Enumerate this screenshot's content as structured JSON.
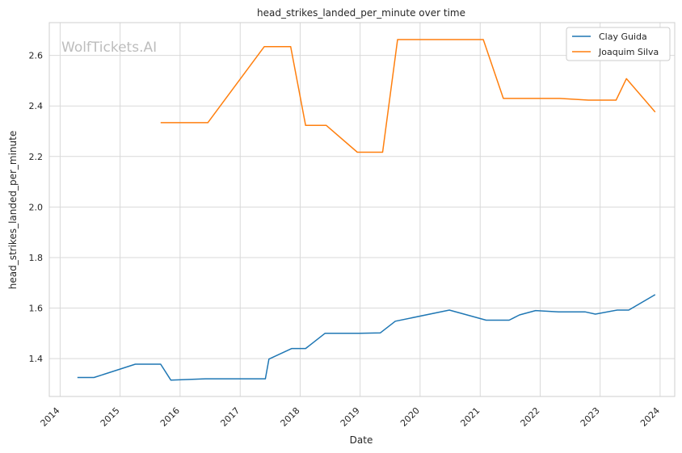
{
  "watermark": "WolfTickets.AI",
  "chart_data": {
    "type": "line",
    "title": "head_strikes_landed_per_minute over time",
    "xlabel": "Date",
    "ylabel": "head_strikes_landed_per_minute",
    "x_ticks": [
      "2014",
      "2015",
      "2016",
      "2017",
      "2018",
      "2019",
      "2020",
      "2021",
      "2022",
      "2023",
      "2024"
    ],
    "y_ticks": [
      "1.4",
      "1.6",
      "1.8",
      "2.0",
      "2.2",
      "2.4",
      "2.6"
    ],
    "xlim": [
      "2013-10-27",
      "2024-03-30"
    ],
    "ylim": [
      1.25,
      2.73
    ],
    "grid": true,
    "legend_position": "top-right",
    "series": [
      {
        "name": "Clay Guida",
        "color": "#1f77b4",
        "points": [
          [
            "2014-04-16",
            1.325
          ],
          [
            "2014-07-26",
            1.325
          ],
          [
            "2015-04-04",
            1.378
          ],
          [
            "2015-09-05",
            1.378
          ],
          [
            "2015-11-06",
            1.315
          ],
          [
            "2016-06-04",
            1.32
          ],
          [
            "2017-06-03",
            1.32
          ],
          [
            "2017-06-25",
            1.398
          ],
          [
            "2017-11-11",
            1.44
          ],
          [
            "2018-02-03",
            1.44
          ],
          [
            "2018-06-01",
            1.5
          ],
          [
            "2018-12-29",
            1.5
          ],
          [
            "2019-05-04",
            1.502
          ],
          [
            "2019-08-03",
            1.548
          ],
          [
            "2020-06-27",
            1.592
          ],
          [
            "2021-02-06",
            1.552
          ],
          [
            "2021-06-26",
            1.552
          ],
          [
            "2021-08-28",
            1.573
          ],
          [
            "2021-12-04",
            1.59
          ],
          [
            "2022-04-23",
            1.585
          ],
          [
            "2022-10-01",
            1.585
          ],
          [
            "2022-12-03",
            1.576
          ],
          [
            "2023-04-15",
            1.592
          ],
          [
            "2023-06-24",
            1.592
          ],
          [
            "2023-12-02",
            1.653
          ]
        ]
      },
      {
        "name": "Joaquim Silva",
        "color": "#ff7f0e",
        "points": [
          [
            "2015-09-05",
            2.334
          ],
          [
            "2016-06-18",
            2.334
          ],
          [
            "2017-05-28",
            2.635
          ],
          [
            "2017-11-04",
            2.635
          ],
          [
            "2018-02-03",
            2.323
          ],
          [
            "2018-06-09",
            2.323
          ],
          [
            "2018-12-15",
            2.217
          ],
          [
            "2019-05-18",
            2.217
          ],
          [
            "2019-08-17",
            2.663
          ],
          [
            "2021-01-20",
            2.663
          ],
          [
            "2021-05-22",
            2.43
          ],
          [
            "2022-04-30",
            2.43
          ],
          [
            "2022-10-22",
            2.423
          ],
          [
            "2023-04-08",
            2.423
          ],
          [
            "2023-06-10",
            2.508
          ],
          [
            "2023-12-02",
            2.376
          ]
        ]
      }
    ]
  }
}
